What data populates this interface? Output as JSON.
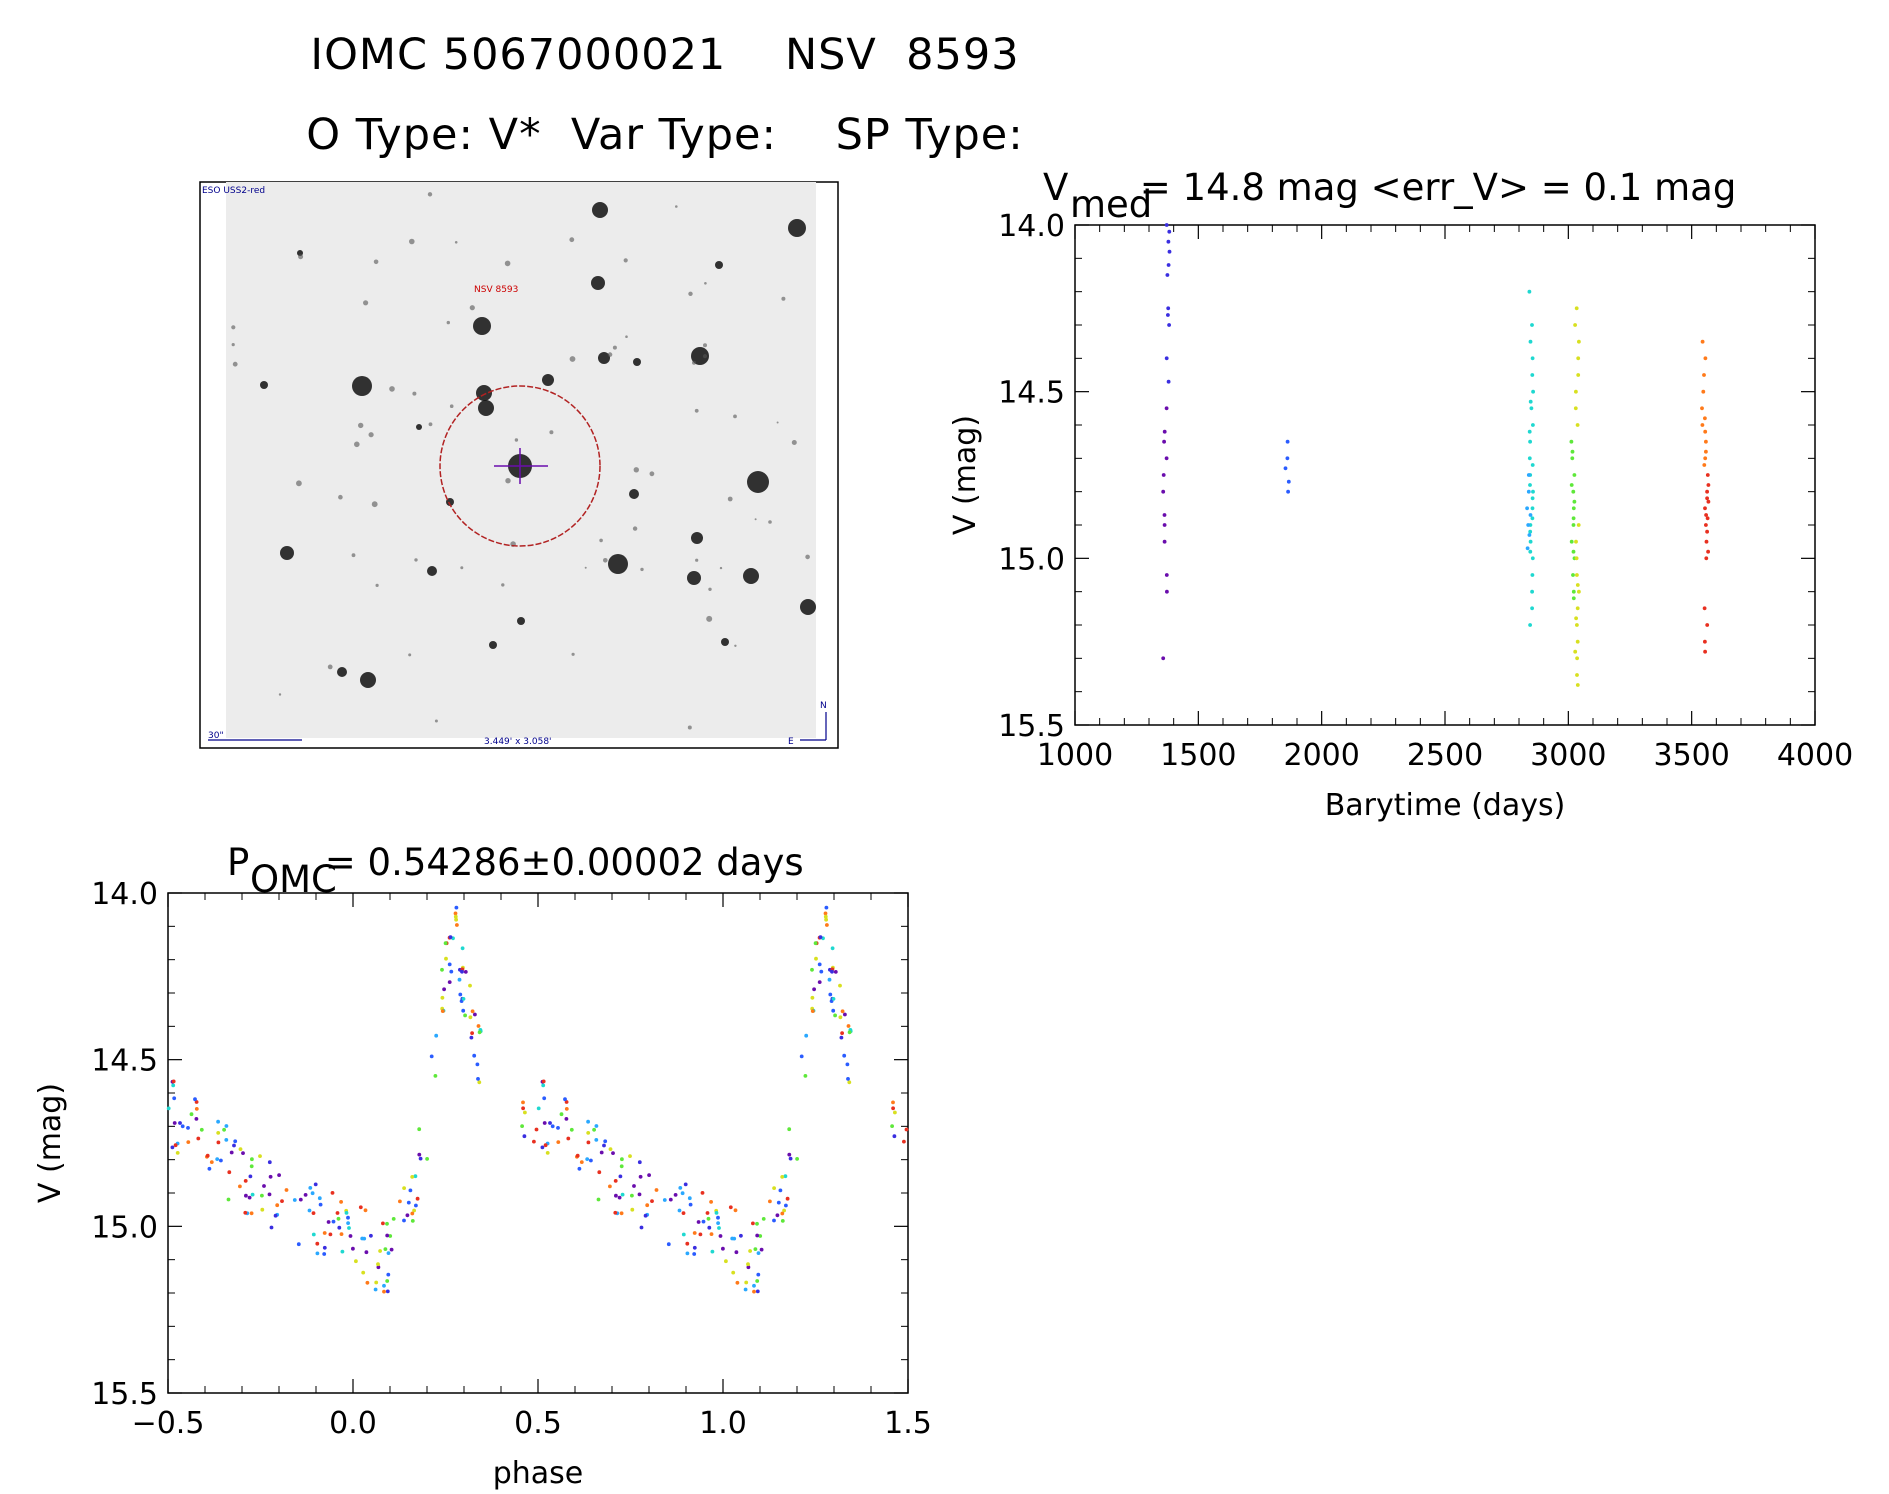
{
  "header": {
    "title_line1": "IOMC 5067000021    NSV  8593",
    "title_line2": "O Type: V*  Var Type:    SP Type:"
  },
  "image_panel": {
    "survey_label": "ESO USS2-red",
    "target_label": "NSV 8593",
    "scale_label": "30\"",
    "fov_label": "3.449' x 3.058'",
    "north_label": "N",
    "east_label": "E"
  },
  "colors": {
    "marker_circle": "#b22222",
    "crosshair": "#6a0dad",
    "label_blue": "#00008b",
    "label_red": "#cc0000"
  },
  "chart_data": [
    {
      "type": "scatter",
      "name": "light_curve",
      "title_main": "V",
      "title_sub": "med",
      "title_rest": " = 14.8 mag <err_V> = 0.1 mag",
      "xlabel": "Barytime (days)",
      "ylabel": "V (mag)",
      "xlim": [
        1000,
        4000
      ],
      "ylim": [
        15.5,
        14.0
      ],
      "xticks": [
        "1000",
        "1500",
        "2000",
        "2500",
        "3000",
        "3500",
        "4000"
      ],
      "yticks": [
        "14.0",
        "14.5",
        "15.0",
        "15.5"
      ],
      "groups": [
        {
          "x": 1365,
          "color": "#6a0dad",
          "values": [
            14.55,
            14.65,
            14.8,
            14.9,
            14.95,
            15.05,
            15.1,
            15.3,
            14.62,
            14.87,
            14.75,
            14.7
          ]
        },
        {
          "x": 1375,
          "color": "#3a2ee0",
          "values": [
            14.0,
            14.02,
            14.05,
            14.08,
            14.12,
            14.15,
            14.25,
            14.3,
            14.4,
            14.47,
            14.27
          ]
        },
        {
          "x": 1860,
          "color": "#2a5cff",
          "values": [
            14.65,
            14.7,
            14.73,
            14.77,
            14.8
          ]
        },
        {
          "x": 2850,
          "color": "#1fd8d0",
          "values": [
            14.2,
            14.3,
            14.35,
            14.4,
            14.45,
            14.5,
            14.55,
            14.6,
            14.65,
            14.7,
            14.75,
            14.8,
            14.85,
            14.9,
            14.95,
            15.0,
            15.05,
            15.1,
            15.15,
            15.2,
            14.72,
            14.82,
            14.88,
            14.92,
            14.78,
            14.62,
            14.98,
            14.53
          ]
        },
        {
          "x": 2840,
          "color": "#2aa8ff",
          "values": [
            14.75,
            14.8,
            14.85,
            14.9,
            14.93,
            14.87,
            14.97
          ]
        },
        {
          "x": 3020,
          "color": "#5ee83a",
          "values": [
            14.65,
            14.7,
            14.75,
            14.8,
            14.85,
            14.9,
            14.95,
            15.0,
            15.05,
            15.1,
            15.12,
            14.68,
            14.78,
            14.88,
            14.98,
            14.83
          ]
        },
        {
          "x": 3035,
          "color": "#d8e020",
          "values": [
            14.25,
            14.3,
            14.35,
            14.4,
            14.45,
            14.5,
            14.55,
            14.6,
            14.9,
            15.0,
            15.05,
            15.1,
            15.15,
            15.2,
            15.25,
            15.3,
            15.35,
            15.38,
            15.08,
            15.18,
            14.95,
            15.28
          ]
        },
        {
          "x": 3550,
          "color": "#ff7a1a",
          "values": [
            14.35,
            14.4,
            14.45,
            14.5,
            14.55,
            14.6,
            14.65,
            14.7,
            14.72,
            14.68,
            14.62,
            14.58
          ]
        },
        {
          "x": 3560,
          "color": "#e83020",
          "values": [
            14.75,
            14.78,
            14.8,
            14.82,
            14.85,
            14.88,
            14.9,
            14.92,
            14.95,
            14.98,
            15.0,
            15.15,
            15.2,
            15.25,
            15.28,
            14.83,
            14.87
          ]
        }
      ]
    },
    {
      "type": "scatter",
      "name": "phased_curve",
      "title_main": "P",
      "title_sub": "OMC",
      "title_rest": " = 0.54286±0.00002 days",
      "xlabel": "phase",
      "ylabel": "V (mag)",
      "xlim": [
        -0.5,
        1.5
      ],
      "ylim": [
        15.5,
        14.0
      ],
      "xticks": [
        "−0.5",
        "0.0",
        "0.5",
        "1.0",
        "1.5"
      ],
      "yticks": [
        "14.0",
        "14.5",
        "15.0",
        "15.5"
      ],
      "period": 0.54286,
      "template": [
        [
          -0.5,
          14.65
        ],
        [
          -0.4,
          14.75
        ],
        [
          -0.3,
          14.85
        ],
        [
          -0.2,
          14.92
        ],
        [
          -0.1,
          14.98
        ],
        [
          0.0,
          15.02
        ],
        [
          0.05,
          15.08
        ],
        [
          0.1,
          15.1
        ],
        [
          0.15,
          14.95
        ],
        [
          0.2,
          14.7
        ],
        [
          0.23,
          14.45
        ],
        [
          0.25,
          14.2
        ],
        [
          0.28,
          14.15
        ],
        [
          0.32,
          14.4
        ],
        [
          0.37,
          14.6
        ],
        [
          0.45,
          14.62
        ],
        [
          0.5,
          14.65
        ]
      ],
      "series_colors": [
        "#6a0dad",
        "#3a2ee0",
        "#2a5cff",
        "#2aa8ff",
        "#1fd8d0",
        "#5ee83a",
        "#d8e020",
        "#ff7a1a",
        "#e83020"
      ]
    }
  ]
}
